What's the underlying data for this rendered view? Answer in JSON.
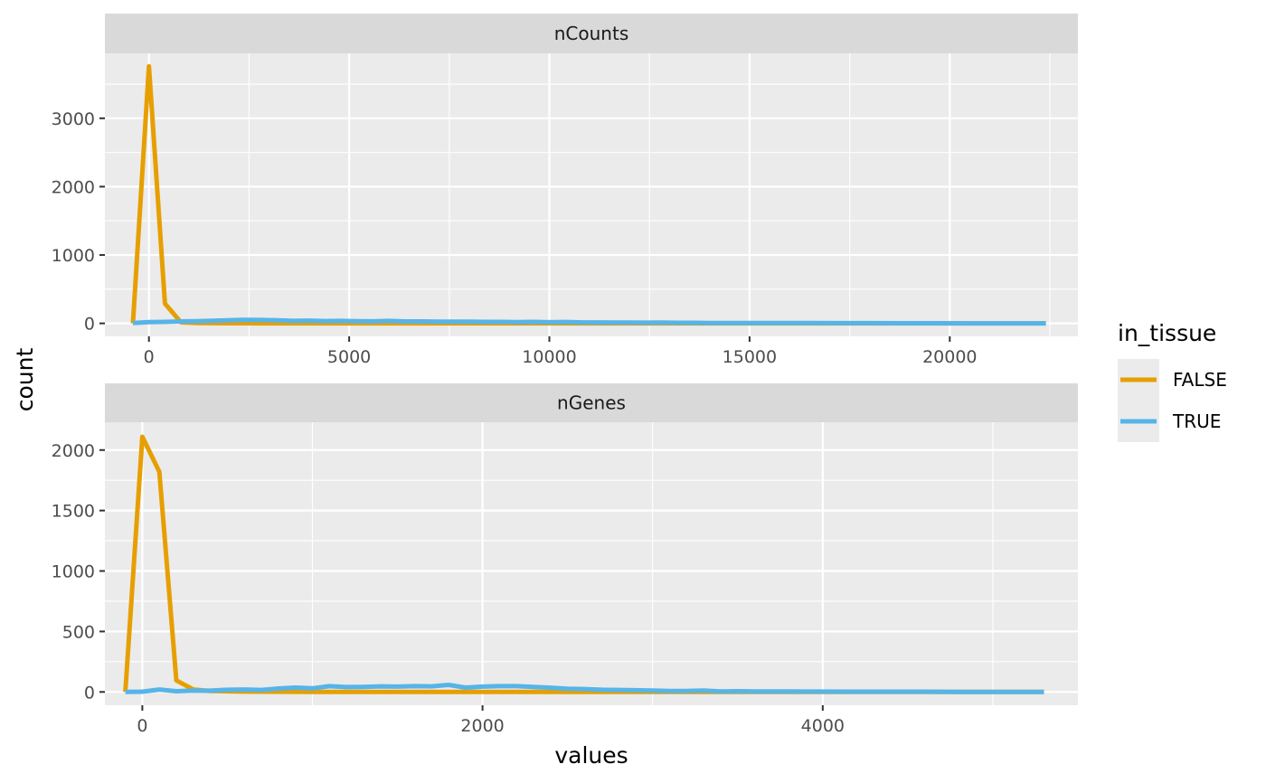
{
  "chart_data": {
    "type": "line",
    "xlabel": "values",
    "ylabel": "count",
    "legend": {
      "title": "in_tissue",
      "position": "right",
      "entries": [
        {
          "label": "FALSE",
          "color": "#E69F00"
        },
        {
          "label": "TRUE",
          "color": "#56B4E9"
        }
      ]
    },
    "grid": true,
    "panels": [
      {
        "strip": "nCounts",
        "xlim": [
          -1100,
          23200
        ],
        "ylim": [
          -190,
          3950
        ],
        "x_major_ticks": [
          0,
          5000,
          10000,
          15000,
          20000
        ],
        "x_minor_ticks": [
          2500,
          7500,
          12500,
          17500,
          22500
        ],
        "y_major_ticks": [
          0,
          1000,
          2000,
          3000
        ],
        "y_minor_ticks": [
          500,
          1500,
          2500,
          3500
        ],
        "x_tick_labels": [
          "0",
          "5000",
          "10000",
          "15000",
          "20000"
        ],
        "y_tick_labels": [
          "0",
          "1000",
          "2000",
          "3000"
        ],
        "series": [
          {
            "name": "FALSE",
            "color": "#E69F00",
            "x": [
              -400,
              0,
              400,
              800,
              1200,
              2000,
              3000,
              5000,
              7000,
              10000,
              15000,
              20000,
              22400
            ],
            "y": [
              0,
              3760,
              290,
              15,
              5,
              2,
              1,
              0,
              0,
              0,
              0,
              0,
              0
            ]
          },
          {
            "name": "TRUE",
            "color": "#56B4E9",
            "x": [
              -400,
              0,
              400,
              800,
              1200,
              1600,
              2000,
              2400,
              2800,
              3200,
              3600,
              4000,
              4400,
              4800,
              5200,
              5600,
              6000,
              6400,
              6800,
              7200,
              7600,
              8000,
              8400,
              8800,
              9200,
              9600,
              10000,
              10400,
              10800,
              11200,
              11600,
              12000,
              12400,
              12800,
              13200,
              13600,
              14000,
              14800,
              15600,
              16400,
              17200,
              18000,
              18800,
              19600,
              20400,
              21200,
              22400
            ],
            "y": [
              5,
              18,
              22,
              28,
              32,
              38,
              46,
              52,
              50,
              46,
              36,
              40,
              34,
              36,
              32,
              30,
              36,
              28,
              28,
              24,
              24,
              26,
              22,
              22,
              18,
              22,
              16,
              20,
              14,
              14,
              12,
              12,
              10,
              12,
              8,
              8,
              6,
              6,
              4,
              4,
              3,
              3,
              2,
              2,
              1,
              1,
              0
            ]
          }
        ]
      },
      {
        "strip": "nGenes",
        "xlim": [
          -220,
          5500
        ],
        "ylim": [
          -110,
          2230
        ],
        "x_major_ticks": [
          0,
          2000,
          4000
        ],
        "x_minor_ticks": [
          1000,
          3000,
          5000
        ],
        "y_major_ticks": [
          0,
          500,
          1000,
          1500,
          2000
        ],
        "y_minor_ticks": [
          250,
          750,
          1250,
          1750
        ],
        "x_tick_labels": [
          "0",
          "2000",
          "4000"
        ],
        "y_tick_labels": [
          "0",
          "500",
          "1000",
          "1500",
          "2000"
        ],
        "series": [
          {
            "name": "FALSE",
            "color": "#E69F00",
            "x": [
              -100,
              0,
              100,
              200,
              300,
              400,
              600,
              1000,
              2000,
              3000,
              4000,
              5000,
              5300
            ],
            "y": [
              0,
              2110,
              1820,
              95,
              20,
              8,
              3,
              1,
              0,
              0,
              0,
              0,
              0
            ]
          },
          {
            "name": "TRUE",
            "color": "#56B4E9",
            "x": [
              -100,
              0,
              100,
              200,
              300,
              400,
              500,
              600,
              700,
              800,
              900,
              1000,
              1100,
              1200,
              1300,
              1400,
              1500,
              1600,
              1700,
              1800,
              1900,
              2000,
              2100,
              2200,
              2300,
              2400,
              2500,
              2600,
              2700,
              2800,
              2900,
              3000,
              3100,
              3200,
              3300,
              3400,
              3500,
              3600,
              3800,
              4000,
              4200,
              4400,
              4600,
              4800,
              5000,
              5300
            ],
            "y": [
              0,
              2,
              20,
              6,
              12,
              10,
              18,
              20,
              16,
              28,
              36,
              30,
              48,
              40,
              42,
              46,
              44,
              48,
              46,
              58,
              36,
              44,
              48,
              48,
              42,
              35,
              26,
              24,
              18,
              16,
              14,
              12,
              8,
              8,
              12,
              4,
              6,
              4,
              4,
              3,
              2,
              2,
              2,
              1,
              1,
              0
            ]
          }
        ]
      }
    ]
  }
}
